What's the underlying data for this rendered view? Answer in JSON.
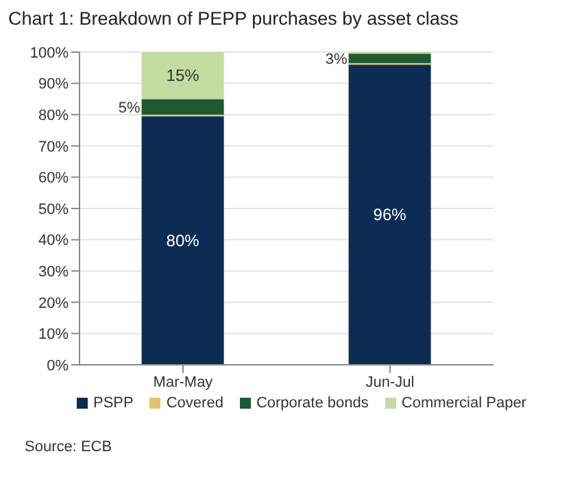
{
  "chart_data": {
    "type": "bar",
    "title": "Chart 1: Breakdown of PEPP purchases by asset class",
    "categories": [
      "Mar-May",
      "Jun-Jul"
    ],
    "stacked": true,
    "series": [
      {
        "name": "PSPP",
        "color": "#0d2c54",
        "values": [
          79.5,
          96
        ],
        "value_labels": [
          "80%",
          "96%"
        ]
      },
      {
        "name": "Covered",
        "color": "#e3c26e",
        "values": [
          0.5,
          0.5
        ],
        "value_labels": [
          null,
          null
        ]
      },
      {
        "name": "Corporate bonds",
        "color": "#1f5a33",
        "values": [
          5,
          3
        ],
        "value_labels": [
          "5%",
          "3%"
        ]
      },
      {
        "name": "Commercial Paper",
        "color": "#c4dba0",
        "values": [
          15,
          0.5
        ],
        "value_labels": [
          "15%",
          null
        ]
      }
    ],
    "ylim": [
      0,
      100
    ],
    "yticks": [
      {
        "value": 0,
        "label": "0%"
      },
      {
        "value": 10,
        "label": "10%"
      },
      {
        "value": 20,
        "label": "20%"
      },
      {
        "value": 30,
        "label": "30%"
      },
      {
        "value": 40,
        "label": "40%"
      },
      {
        "value": 50,
        "label": "50%"
      },
      {
        "value": 60,
        "label": "60%"
      },
      {
        "value": 70,
        "label": "70%"
      },
      {
        "value": 80,
        "label": "80%"
      },
      {
        "value": 90,
        "label": "90%"
      },
      {
        "value": 100,
        "label": "100%"
      }
    ],
    "grid": "y",
    "legend": "bottom",
    "annotations": [
      "Source: ECB"
    ]
  }
}
